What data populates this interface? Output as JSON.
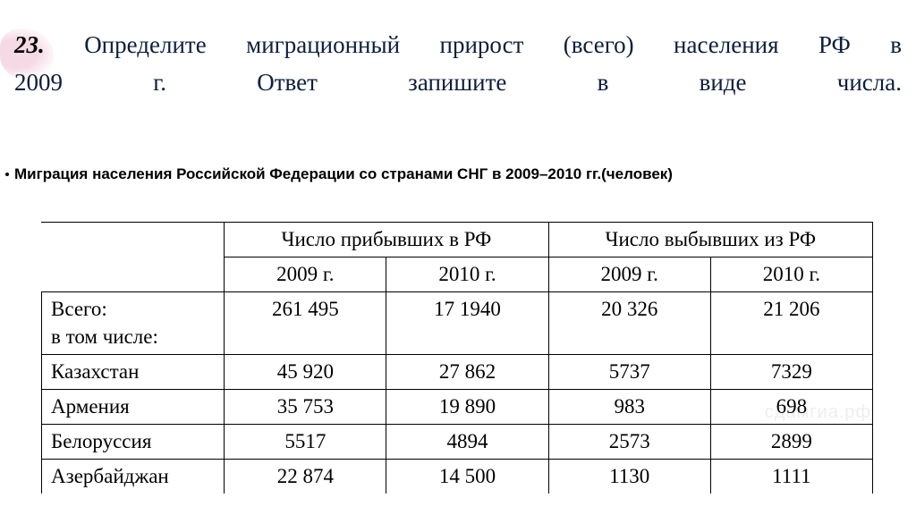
{
  "question": {
    "number": "23.",
    "text_before_break": "Определите миграционный прирост (всего) населения РФ в",
    "text_line2": "2009 г. Ответ запишите в виде числа."
  },
  "subtitle": "Миграция населения Российской Федерации со странами СНГ в 2009–2010 гг.(человек)",
  "table": {
    "header_arrived": "Число прибывших в РФ",
    "header_departed": "Число выбывших из РФ",
    "year1": "2009 г.",
    "year2": "2010 г.",
    "rows": [
      {
        "label_line1": "Всего:",
        "label_line2": "в том числе:",
        "a09": "261 495",
        "a10": "17 1940",
        "d09": "20 326",
        "d10": "21 206"
      },
      {
        "label_line1": "Казахстан",
        "a09": "45 920",
        "a10": "27 862",
        "d09": "5737",
        "d10": "7329"
      },
      {
        "label_line1": "Армения",
        "a09": "35 753",
        "a10": "19 890",
        "d09": "983",
        "d10": "698"
      },
      {
        "label_line1": "Белоруссия",
        "a09": "5517",
        "a10": "4894",
        "d09": "2573",
        "d10": "2899"
      },
      {
        "label_line1": "Азербайджан",
        "a09": "22 874",
        "a10": "14 500",
        "d09": "1130",
        "d10": "1111"
      }
    ]
  },
  "colors": {
    "question_text": "#0d1f3c",
    "smudge": "#f5d9e4",
    "border": "#000000",
    "background": "#ffffff"
  },
  "watermark": "сдамгиа.рф"
}
